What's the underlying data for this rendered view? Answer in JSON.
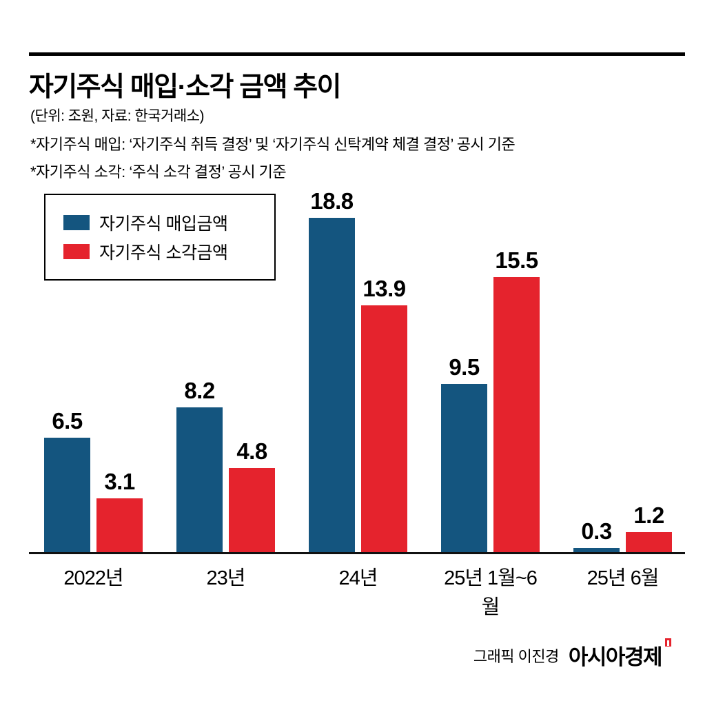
{
  "title": "자기주식 매입·소각 금액 추이",
  "subtitle": "(단위: 조원, 자료: 한국거래소)",
  "notes": {
    "line1": "*자기주식 매입: ‘자기주식 취득 결정’ 및 ‘자기주식 신탁계약 체결 결정’ 공시 기준",
    "line2": "*자기주식 소각: ‘주식 소각 결정’ 공시 기준"
  },
  "legend": [
    {
      "label": "자기주식 매입금액",
      "color": "#14557f"
    },
    {
      "label": "자기주식 소각금액",
      "color": "#e5232d"
    }
  ],
  "footer": {
    "credit": "그래픽 이진경",
    "brand": "아시아경제"
  },
  "colors": {
    "buy_blue": "#14557f",
    "cancel_red": "#e5232d",
    "axis": "#111111"
  },
  "chart_data": {
    "type": "bar",
    "title": "자기주식 매입·소각 금액 추이",
    "unit": "조원",
    "source": "한국거래소",
    "categories": [
      "2022년",
      "23년",
      "24년",
      "25년 1월~6월",
      "25년 6월"
    ],
    "series": [
      {
        "name": "자기주식 매입금액",
        "color": "#14557f",
        "values": [
          6.5,
          8.2,
          18.8,
          9.5,
          0.3
        ]
      },
      {
        "name": "자기주식 소각금액",
        "color": "#e5232d",
        "values": [
          3.1,
          4.8,
          13.9,
          15.5,
          1.2
        ]
      }
    ],
    "ylim": [
      0,
      20
    ],
    "grid": false,
    "legend_position": "top-left",
    "value_labels": true
  }
}
